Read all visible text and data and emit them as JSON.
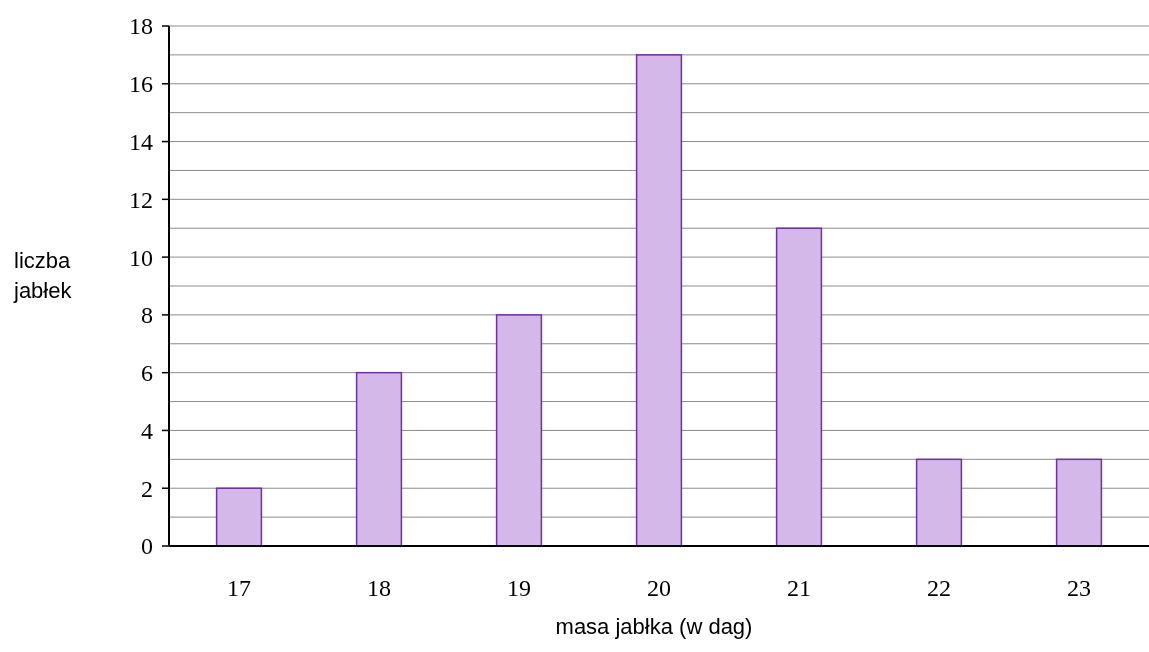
{
  "chart_data": {
    "type": "bar",
    "xlabel": "masa jabłka (w dag)",
    "ylabel": "liczba jabłek",
    "categories": [
      "17",
      "18",
      "19",
      "20",
      "21",
      "22",
      "23"
    ],
    "values": [
      2,
      6,
      8,
      17,
      11,
      3,
      3
    ],
    "color": "#d4b8ea",
    "ylim": [
      0,
      18
    ],
    "yticks": [
      0,
      {
        "value": 1,
        "label": null
      },
      2,
      {
        "value": 3,
        "label": null
      },
      4,
      {
        "value": 5,
        "label": null
      },
      6,
      {
        "value": 7,
        "label": null
      },
      8,
      {
        "value": 9,
        "label": null
      },
      10,
      {
        "value": 11,
        "label": null
      },
      12,
      {
        "value": 13,
        "label": null
      },
      14,
      {
        "value": 15,
        "label": null
      },
      16,
      {
        "value": 17,
        "label": null
      },
      18
    ],
    "grid": "y"
  }
}
